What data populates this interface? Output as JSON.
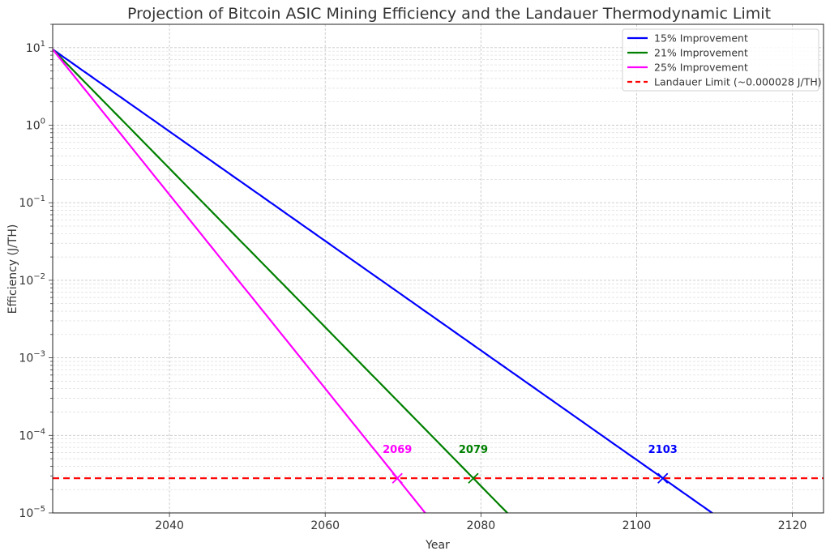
{
  "chart_data": {
    "type": "line",
    "title": "Projection of Bitcoin ASIC Mining Efficiency and the Landauer Thermodynamic Limit",
    "xlabel": "Year",
    "ylabel": "Efficiency (J/TH)",
    "xlim": [
      2025,
      2124
    ],
    "ylim": [
      1e-05,
      20
    ],
    "yscale": "log",
    "x_ticks": [
      2040,
      2060,
      2080,
      2100,
      2120
    ],
    "y_ticks": [
      {
        "value": 10,
        "base": "10",
        "exp": "1"
      },
      {
        "value": 1,
        "base": "10",
        "exp": "0"
      },
      {
        "value": 0.1,
        "base": "10",
        "exp": "−1"
      },
      {
        "value": 0.01,
        "base": "10",
        "exp": "−2"
      },
      {
        "value": 0.001,
        "base": "10",
        "exp": "−3"
      },
      {
        "value": 0.0001,
        "base": "10",
        "exp": "−4"
      },
      {
        "value": 1e-05,
        "base": "10",
        "exp": "−5"
      }
    ],
    "grid": true,
    "legend_position": "top-right",
    "start_year": 2025,
    "start_value": 9.5,
    "series": [
      {
        "name": "15% Improvement",
        "annual_improvement": 0.15,
        "color": "#0000ff",
        "crossing_year": 2103,
        "crossing_label": "2103"
      },
      {
        "name": "21% Improvement",
        "annual_improvement": 0.21,
        "color": "#008000",
        "crossing_year": 2079,
        "crossing_label": "2079"
      },
      {
        "name": "25% Improvement",
        "annual_improvement": 0.25,
        "color": "#ff00ff",
        "crossing_year": 2069,
        "crossing_label": "2069"
      }
    ],
    "limit": {
      "name": "Landauer Limit (~0.000028 J/TH)",
      "value": 2.8e-05,
      "color": "#ff0000"
    }
  }
}
